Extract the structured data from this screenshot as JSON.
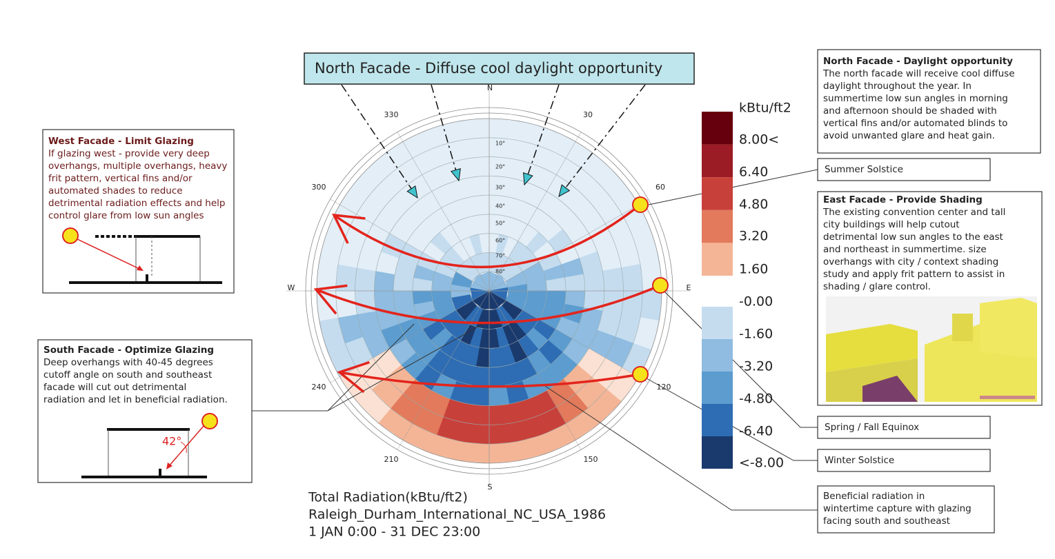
{
  "banner": {
    "title": "North Facade",
    "subtitle": "- Diffuse cool daylight opportunity"
  },
  "compass": {
    "north": "N",
    "east": "E",
    "south": "S",
    "west": "W",
    "azimuths": [
      "330",
      "30",
      "300",
      "60",
      "240",
      "120",
      "210",
      "150"
    ],
    "altitudes": [
      "10°",
      "20°",
      "30°",
      "40°",
      "50°",
      "60°",
      "70°",
      "80°"
    ]
  },
  "legend": {
    "unit": "kBtu/ft2",
    "labels": [
      "8.00<",
      "6.40",
      "4.80",
      "3.20",
      "1.60",
      "-0.00",
      "-1.60",
      "-3.20",
      "-4.80",
      "-6.40",
      "<-8.00"
    ]
  },
  "caption": [
    "Total Radiation(kBtu/ft2)",
    "Raleigh_Durham_International_NC_USA_1986",
    "1 JAN 0:00 - 31 DEC 23:00"
  ],
  "west_facade": {
    "title": "West Facade - Limit Glazing",
    "lines": [
      "If glazing west - provide very deep",
      "overhangs, multiple overhangs, heavy",
      "frit pattern, vertical fins and/or",
      "automated shades to reduce",
      "detrimental radiation effects and help",
      "control glare from low sun angles"
    ]
  },
  "south_facade": {
    "title": "South Facade - Optimize Glazing",
    "lines": [
      "Deep overhangs with 40-45 degrees",
      "cutoff angle on south and southeast",
      "facade will cut out detrimental",
      "radiation and let in beneficial radiation."
    ],
    "angle": "42°"
  },
  "north_facade": {
    "title": "North Facade - Daylight opportunity",
    "lines": [
      "The north facade will receive cool diffuse",
      "daylight throughout the year.  In",
      "summertime low sun angles in morning",
      "and afternoon should be shaded with",
      "vertical fins and/or automated blinds to",
      "avoid unwanted glare and heat gain."
    ]
  },
  "east_facade": {
    "title": "East Facade - Provide Shading",
    "lines": [
      "The existing convention center and tall",
      "city buildings will help cutout",
      "detrimental low sun angles to the east",
      "and northeast in summertime.  size",
      "overhangs with city / context shading",
      "study and apply frit pattern to assist in",
      "shading / glare control."
    ]
  },
  "callouts": {
    "summer": "Summer Solstice",
    "equinox": "Spring / Fall Equinox",
    "winter": "Winter Solstice",
    "beneficial": [
      "Beneficial radiation in",
      "wintertime capture with glazing",
      "facing south and southeast"
    ]
  }
}
